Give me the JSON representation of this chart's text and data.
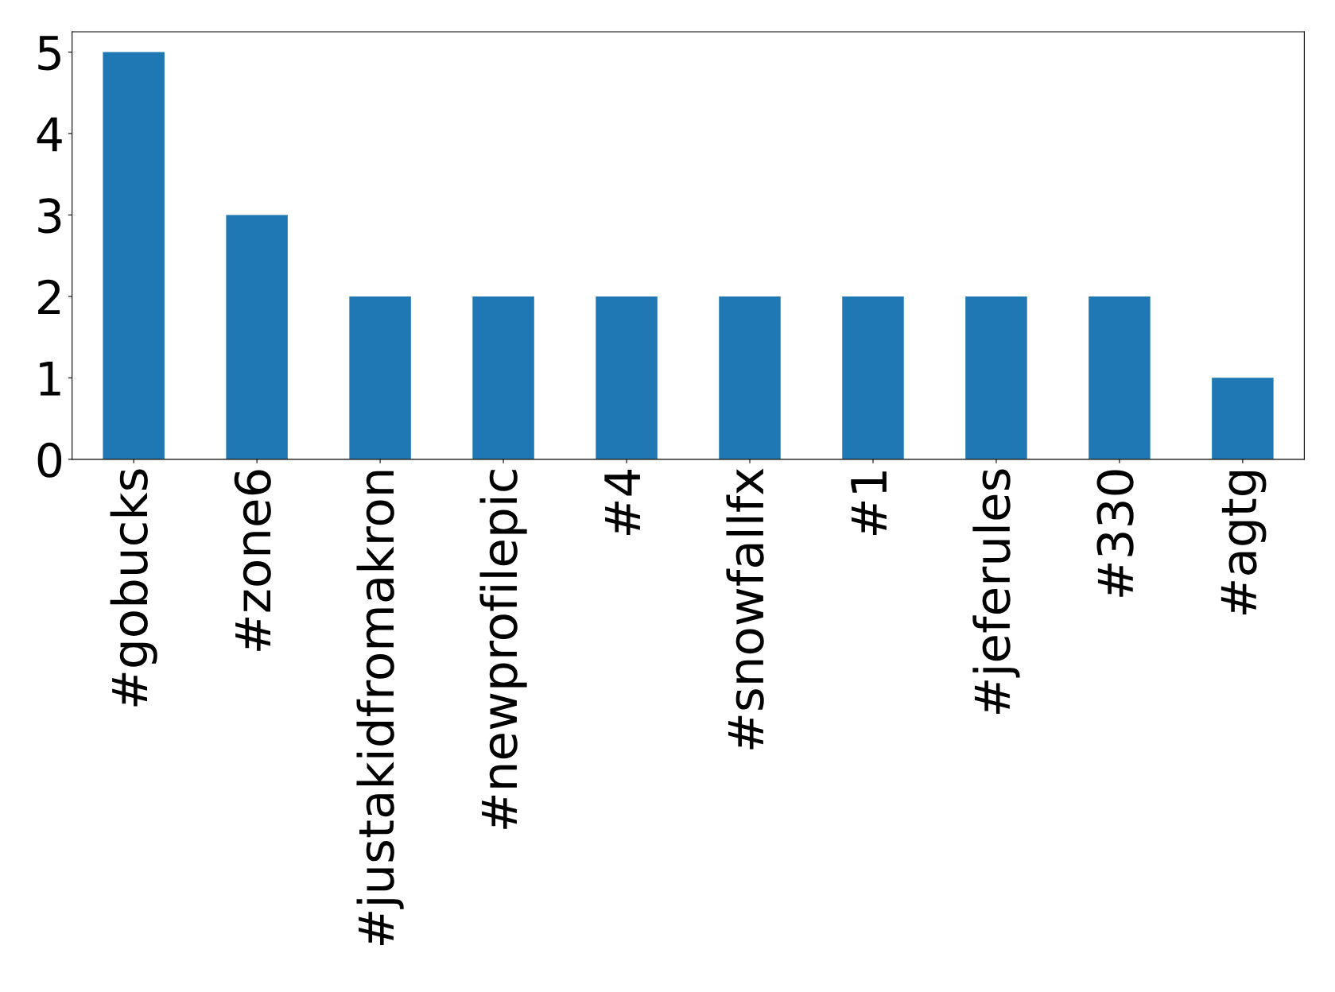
{
  "chart_data": {
    "type": "bar",
    "categories": [
      "#gobucks",
      "#zone6",
      "#justakidfromakron",
      "#newprofilepic",
      "#4",
      "#snowfallfx",
      "#1",
      "#jeferules",
      "#330",
      "#agtg"
    ],
    "values": [
      5,
      3,
      2,
      2,
      2,
      2,
      2,
      2,
      2,
      1
    ],
    "color": "#1f77b4",
    "ylim": [
      0,
      5.25
    ],
    "yticks": [
      0,
      1,
      2,
      3,
      4,
      5
    ],
    "grid": false
  }
}
